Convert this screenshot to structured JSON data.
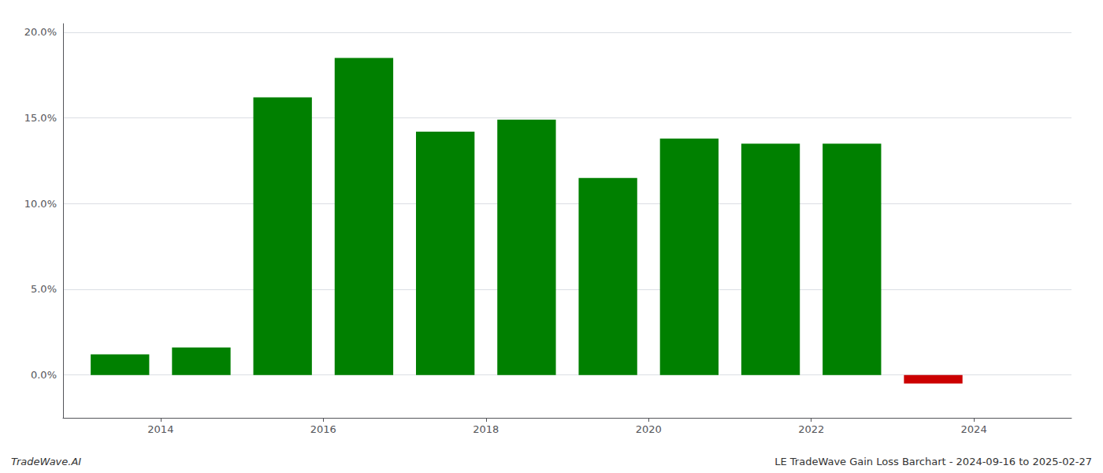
{
  "chart_data": {
    "type": "bar",
    "x": [
      2013.5,
      2014.5,
      2015.5,
      2016.5,
      2017.5,
      2018.5,
      2019.5,
      2020.5,
      2021.5,
      2022.5,
      2023.5
    ],
    "values": [
      0.012,
      0.016,
      0.162,
      0.185,
      0.142,
      0.149,
      0.115,
      0.138,
      0.135,
      0.135,
      -0.005
    ],
    "colors": [
      "#008000",
      "#008000",
      "#008000",
      "#008000",
      "#008000",
      "#008000",
      "#008000",
      "#008000",
      "#008000",
      "#008000",
      "#cc0000"
    ],
    "xlim": [
      2012.8,
      2025.2
    ],
    "xticks": [
      2014,
      2016,
      2018,
      2020,
      2022,
      2024
    ],
    "ylim": [
      -0.025,
      0.205
    ],
    "yticks": [
      {
        "value": 0.0,
        "label": "0.0%"
      },
      {
        "value": 0.05,
        "label": "5.0%"
      },
      {
        "value": 0.1,
        "label": "10.0%"
      },
      {
        "value": 0.15,
        "label": "15.0%"
      },
      {
        "value": 0.2,
        "label": "20.0%"
      }
    ],
    "grid": true,
    "annotations": [
      "TradeWave.AI",
      "LE TradeWave Gain Loss Barchart - 2024-09-16 to 2025-02-27"
    ]
  }
}
